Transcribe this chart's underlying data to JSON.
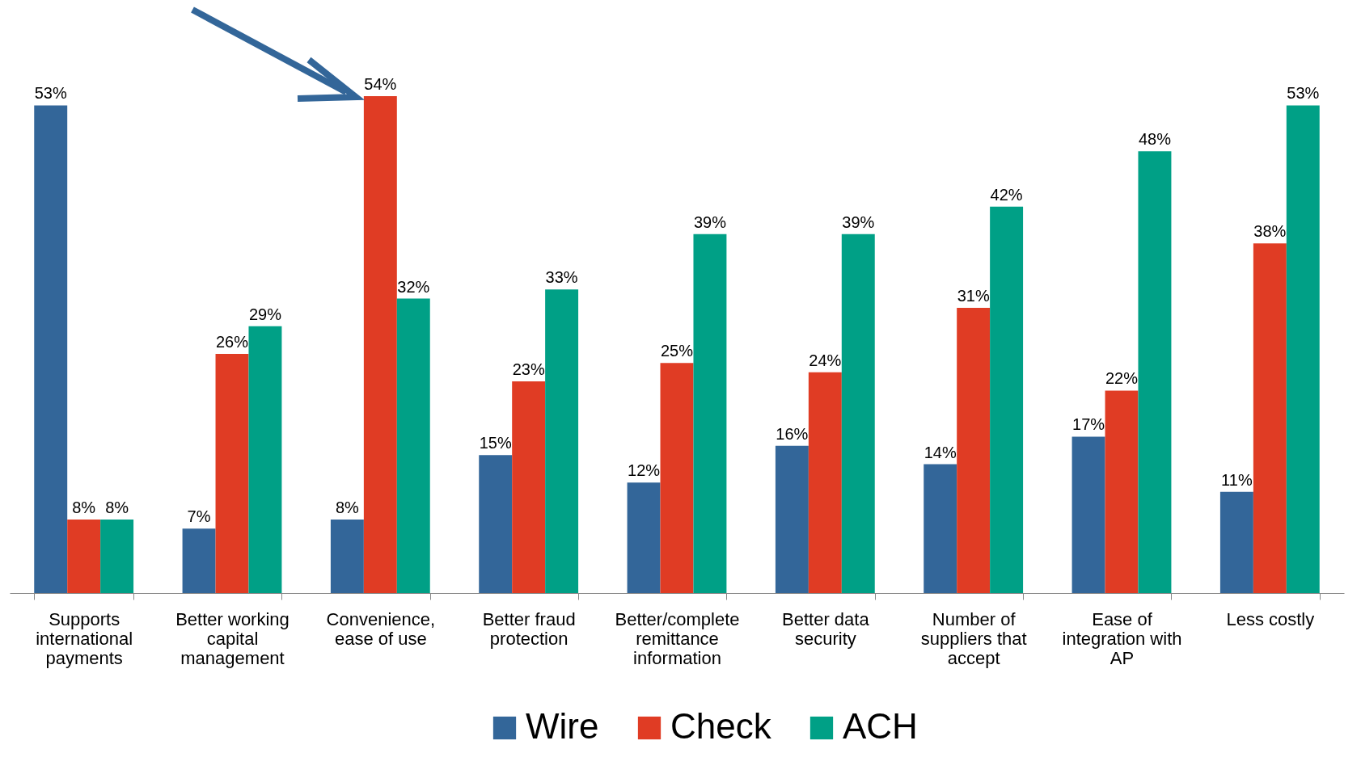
{
  "chart_data": {
    "type": "bar",
    "categories": [
      "Supports international payments",
      "Better working capital management",
      "Convenience, ease of use",
      "Better fraud protection",
      "Better/complete remittance information",
      "Better data security",
      "Number of suppliers that accept",
      "Ease of integration with AP",
      "Less costly"
    ],
    "series": [
      {
        "name": "Wire",
        "color": "#336699",
        "values": [
          53,
          7,
          8,
          15,
          12,
          16,
          14,
          17,
          11
        ],
        "value_labels": [
          "53%",
          "7%",
          "8%",
          "15%",
          "12%",
          "16%",
          "14%",
          "17%",
          "11%"
        ]
      },
      {
        "name": "Check",
        "color": "#e03c24",
        "values": [
          8,
          26,
          54,
          23,
          25,
          24,
          31,
          22,
          38
        ],
        "value_labels": [
          "8%",
          "26%",
          "54%",
          "23%",
          "25%",
          "24%",
          "31%",
          "22%",
          "38%"
        ]
      },
      {
        "name": "ACH",
        "color": "#00a086",
        "values": [
          8,
          29,
          32,
          33,
          39,
          39,
          42,
          48,
          53
        ],
        "value_labels": [
          "8%",
          "29%",
          "32%",
          "33%",
          "39%",
          "39%",
          "42%",
          "48%",
          "53%"
        ]
      }
    ],
    "legend": "bottom",
    "grid": false
  }
}
